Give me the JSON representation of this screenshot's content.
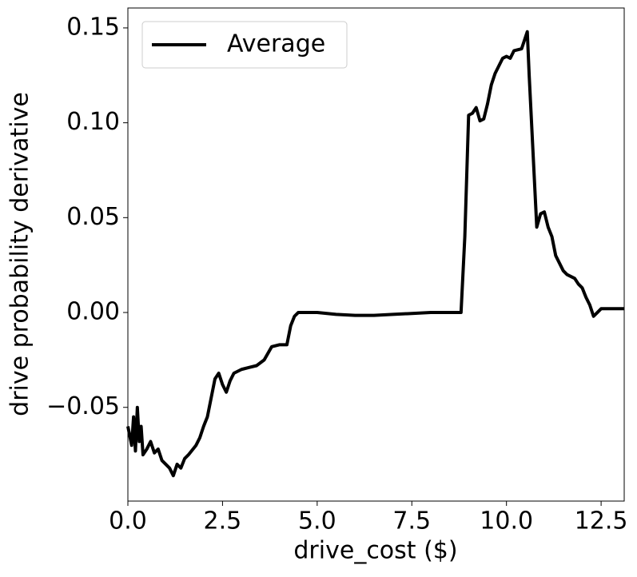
{
  "chart_data": {
    "type": "line",
    "xlabel": "drive_cost ($)",
    "ylabel": "drive probability derivative",
    "xlim": [
      0,
      13.11
    ],
    "ylim": [
      -0.0994,
      0.1605
    ],
    "xticks": [
      {
        "value": 0,
        "label": "0.0"
      },
      2.5,
      {
        "value": 5,
        "label": "5.0"
      },
      7.5,
      {
        "value": 10,
        "label": "10.0"
      },
      12.5
    ],
    "yticks": [
      {
        "value": -0.05,
        "label": "−0.05"
      },
      {
        "value": 0,
        "label": "0.00"
      },
      0.05,
      {
        "value": 0.1,
        "label": "0.10"
      },
      0.15
    ],
    "legend": "upper left",
    "x": [
      0,
      0.1,
      0.15,
      0.2,
      0.25,
      0.3,
      0.35,
      0.4,
      0.5,
      0.6,
      0.7,
      0.8,
      0.9,
      1.0,
      1.1,
      1.2,
      1.3,
      1.4,
      1.5,
      1.6,
      1.8,
      1.9,
      2.0,
      2.1,
      2.2,
      2.3,
      2.4,
      2.5,
      2.6,
      2.7,
      2.8,
      3.0,
      3.2,
      3.4,
      3.6,
      3.8,
      4.0,
      4.2,
      4.3,
      4.4,
      4.5,
      5.0,
      5.5,
      6.0,
      6.5,
      7.0,
      7.5,
      8.0,
      8.5,
      8.8,
      8.9,
      9.0,
      9.1,
      9.2,
      9.3,
      9.4,
      9.5,
      9.6,
      9.7,
      9.8,
      9.9,
      10.0,
      10.1,
      10.2,
      10.4,
      10.5,
      10.55,
      10.6,
      10.7,
      10.8,
      10.9,
      11.0,
      11.1,
      11.2,
      11.3,
      11.4,
      11.5,
      11.6,
      11.8,
      11.9,
      12.0,
      12.1,
      12.2,
      12.3,
      12.4,
      12.5,
      12.7,
      13.0,
      13.1
    ],
    "series": [
      {
        "name": "Average",
        "color": "#000000",
        "values": [
          -0.06,
          -0.07,
          -0.055,
          -0.073,
          -0.05,
          -0.068,
          -0.06,
          -0.075,
          -0.072,
          -0.068,
          -0.074,
          -0.072,
          -0.078,
          -0.08,
          -0.082,
          -0.086,
          -0.08,
          -0.082,
          -0.077,
          -0.075,
          -0.07,
          -0.066,
          -0.06,
          -0.055,
          -0.045,
          -0.035,
          -0.032,
          -0.038,
          -0.042,
          -0.036,
          -0.032,
          -0.03,
          -0.029,
          -0.028,
          -0.025,
          -0.018,
          -0.017,
          -0.017,
          -0.007,
          -0.002,
          0.0,
          0.0,
          -0.001,
          -0.0015,
          -0.0015,
          -0.001,
          -0.0005,
          0.0,
          0.0,
          0.0,
          0.04,
          0.104,
          0.105,
          0.108,
          0.101,
          0.102,
          0.11,
          0.12,
          0.126,
          0.13,
          0.134,
          0.135,
          0.134,
          0.138,
          0.139,
          0.145,
          0.148,
          0.125,
          0.085,
          0.045,
          0.052,
          0.053,
          0.045,
          0.04,
          0.03,
          0.026,
          0.022,
          0.02,
          0.018,
          0.015,
          0.013,
          0.008,
          0.004,
          -0.002,
          0.0,
          0.002,
          0.002,
          0.002,
          0.002
        ]
      }
    ]
  }
}
